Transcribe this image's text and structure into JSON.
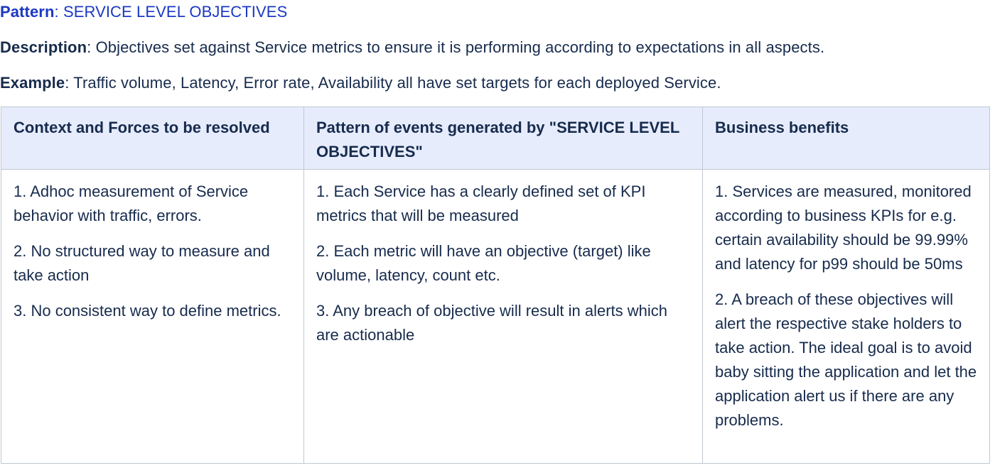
{
  "header": {
    "pattern_label": "Pattern",
    "pattern_value": "SERVICE LEVEL OBJECTIVES",
    "description_label": "Description",
    "description_value": "Objectives set against Service metrics to ensure it is performing according to expectations in all aspects.",
    "example_label": "Example",
    "example_value": "Traffic volume, Latency, Error rate, Availability all have set targets for each deployed Service."
  },
  "table": {
    "columns": [
      "Context and Forces to be resolved",
      "Pattern of events generated by \"SERVICE LEVEL OBJECTIVES\"",
      "Business benefits"
    ],
    "rows": [
      {
        "context": [
          "1. Adhoc measurement of Service behavior with traffic, errors.",
          "2. No structured way to measure and take action",
          "3. No consistent way to define metrics."
        ],
        "events": [
          "1. Each Service has a clearly defined set of KPI metrics that will be measured",
          "2. Each metric will have an objective (target) like volume, latency, count etc.",
          "3. Any breach of objective will result in alerts which are actionable"
        ],
        "benefits": [
          "1. Services are measured, monitored according to business KPIs for e.g. certain availability should be 99.99% and latency for p99 should be 50ms",
          "2. A breach of these objectives will alert the respective stake holders to take action. The ideal goal is to avoid baby sitting the application and let the application alert us if there are any problems."
        ]
      }
    ]
  },
  "colors": {
    "pattern_text": "#1b38c4",
    "body_text": "#172b4d",
    "header_bg": "#e6ecfc",
    "border": "#c1c7d0"
  }
}
